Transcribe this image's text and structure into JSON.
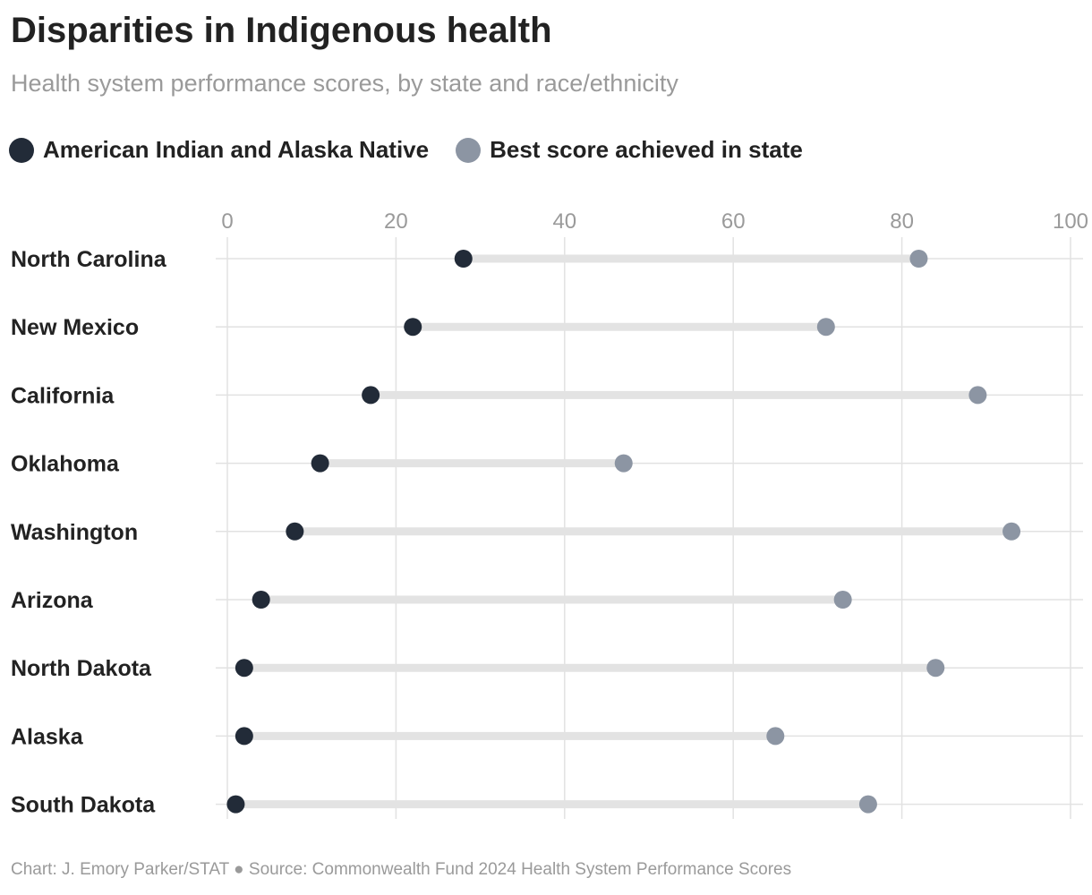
{
  "chart_data": {
    "type": "dumbbell",
    "title": "Disparities in Indigenous health",
    "subtitle": "Health system performance scores, by state and race/ethnicity",
    "legend": [
      {
        "name": "American Indian and Alaska Native",
        "color": "#222b38"
      },
      {
        "name": "Best score achieved in state",
        "color": "#8c95a3"
      }
    ],
    "xlim": [
      0,
      100
    ],
    "xticks": [
      0,
      20,
      40,
      60,
      80,
      100
    ],
    "categories": [
      "North Carolina",
      "New Mexico",
      "California",
      "Oklahoma",
      "Washington",
      "Arizona",
      "North Dakota",
      "Alaska",
      "South Dakota"
    ],
    "series": [
      {
        "name": "American Indian and Alaska Native",
        "values": [
          28,
          22,
          17,
          11,
          8,
          4,
          2,
          2,
          1
        ]
      },
      {
        "name": "Best score achieved in state",
        "values": [
          82,
          71,
          89,
          47,
          93,
          73,
          84,
          65,
          76
        ]
      }
    ],
    "grid": true,
    "legend_position": "top-left",
    "footer": "Chart: J. Emory Parker/STAT ● Source: Commonwealth Fund 2024 Health System Performance Scores"
  }
}
